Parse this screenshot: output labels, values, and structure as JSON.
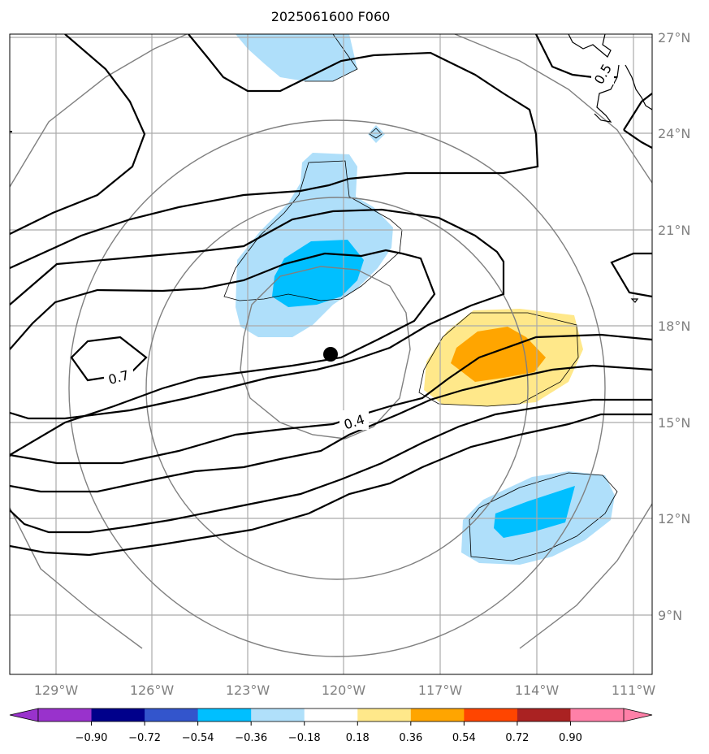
{
  "title": "2025061600 F060",
  "map": {
    "lon_ticks": [
      "129°W",
      "126°W",
      "123°W",
      "120°W",
      "117°W",
      "114°W",
      "111°W"
    ],
    "lat_ticks": [
      "27°N",
      "24°N",
      "21°N",
      "18°N",
      "15°N",
      "12°N",
      "9°N"
    ],
    "contour_labels": [
      "0.7",
      "0.4",
      "0.5"
    ],
    "center_marker": "storm-center-dot"
  },
  "colorbar": {
    "tick_labels": [
      "−0.90",
      "−0.72",
      "−0.54",
      "−0.36",
      "−0.18",
      "0.18",
      "0.36",
      "0.54",
      "0.72",
      "0.90"
    ],
    "colors": [
      "#9932cc",
      "#00008b",
      "#3355cc",
      "#00bfff",
      "#b0e0fa",
      "#ffffff",
      "#ffe88a",
      "#ffa500",
      "#ff4500",
      "#aa2222",
      "#ff80a8"
    ]
  },
  "colors": {
    "light_blue": "#afdffa",
    "blue": "#00bfff",
    "light_yellow": "#ffe88a",
    "orange": "#ffa500",
    "grid": "#aaaaaa",
    "range_ring": "#808080"
  }
}
